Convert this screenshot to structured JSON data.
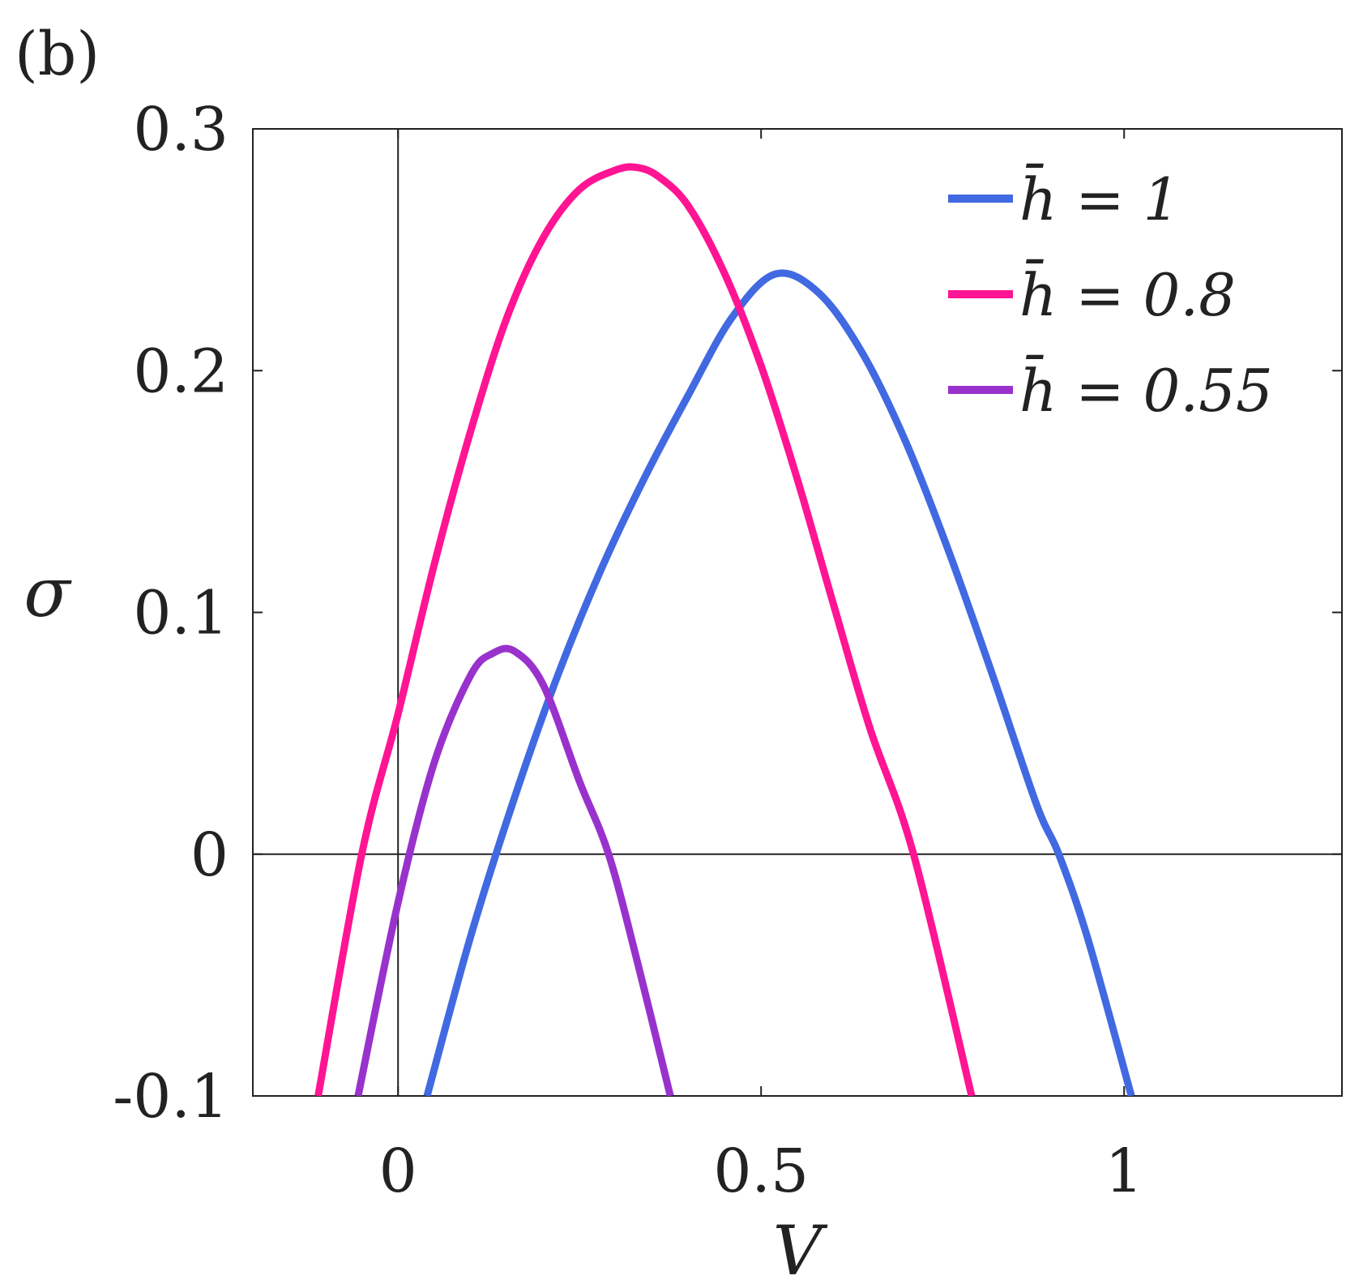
{
  "panel_label": "(b)",
  "chart_data": {
    "type": "line",
    "title": "",
    "xlabel": "V",
    "ylabel": "σ",
    "xlim": [
      -0.2,
      1.3
    ],
    "ylim": [
      -0.1,
      0.3
    ],
    "xticks": [
      0,
      0.5,
      1
    ],
    "xtick_labels": [
      "0",
      "0.5",
      "1"
    ],
    "yticks": [
      -0.1,
      0,
      0.1,
      0.2,
      0.3
    ],
    "ytick_labels": [
      "-0.1",
      "0",
      "0.1",
      "0.2",
      "0.3"
    ],
    "grid": false,
    "zero_lines": true,
    "legend_position": "top-right",
    "series": [
      {
        "name": "h̄ = 1",
        "color": "#4169E1",
        "x": [
          0.04,
          0.1,
          0.16,
          0.22,
          0.28,
          0.34,
          0.4,
          0.46,
          0.52,
          0.58,
          0.64,
          0.7,
          0.76,
          0.82,
          0.88,
          0.91,
          0.95,
          1.01
        ],
        "y": [
          -0.1,
          -0.034,
          0.023,
          0.074,
          0.118,
          0.156,
          0.19,
          0.222,
          0.24,
          0.232,
          0.207,
          0.17,
          0.124,
          0.073,
          0.02,
          0.0,
          -0.035,
          -0.1
        ]
      },
      {
        "name": "h̄ = 0.8",
        "color": "#FF1493",
        "x": [
          -0.11,
          -0.05,
          0.0,
          0.05,
          0.1,
          0.15,
          0.2,
          0.25,
          0.3,
          0.33,
          0.36,
          0.4,
          0.45,
          0.5,
          0.55,
          0.6,
          0.65,
          0.71,
          0.79
        ],
        "y": [
          -0.1,
          0.0,
          0.058,
          0.12,
          0.175,
          0.222,
          0.255,
          0.275,
          0.283,
          0.284,
          0.28,
          0.268,
          0.24,
          0.202,
          0.155,
          0.103,
          0.052,
          0.0,
          -0.1
        ]
      },
      {
        "name": "h̄ = 0.55",
        "color": "#9932CC",
        "x": [
          -0.055,
          0.0,
          0.05,
          0.1,
          0.13,
          0.16,
          0.2,
          0.25,
          0.29,
          0.33,
          0.375
        ],
        "y": [
          -0.1,
          -0.02,
          0.038,
          0.074,
          0.083,
          0.084,
          0.07,
          0.03,
          0.0,
          -0.045,
          -0.1
        ]
      }
    ]
  }
}
